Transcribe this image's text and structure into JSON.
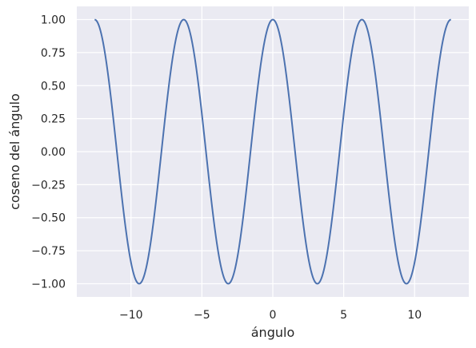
{
  "chart_data": {
    "type": "line",
    "xlabel": "ángulo",
    "ylabel": "coseno del ángulo",
    "xlim": [
      -13.823,
      13.823
    ],
    "ylim": [
      -1.1,
      1.1
    ],
    "x_ticks": [
      {
        "value": -10,
        "label": "−10"
      },
      {
        "value": -5,
        "label": "−5"
      },
      {
        "value": 0,
        "label": "0"
      },
      {
        "value": 5,
        "label": "5"
      },
      {
        "value": 10,
        "label": "10"
      }
    ],
    "y_ticks": [
      {
        "value": 1.0,
        "label": "1.00"
      },
      {
        "value": 0.75,
        "label": "0.75"
      },
      {
        "value": 0.5,
        "label": "0.50"
      },
      {
        "value": 0.25,
        "label": "0.25"
      },
      {
        "value": 0.0,
        "label": "0.00"
      },
      {
        "value": -0.25,
        "label": "−0.25"
      },
      {
        "value": -0.5,
        "label": "−0.50"
      },
      {
        "value": -0.75,
        "label": "−0.75"
      },
      {
        "value": -1.0,
        "label": "−1.00"
      }
    ],
    "grid": true,
    "series": [
      {
        "color": "#4c72b0",
        "x_range": [
          -12.566,
          12.566
        ],
        "function": "cos"
      }
    ],
    "background_color": "#eaeaf2",
    "grid_color": "#ffffff"
  }
}
